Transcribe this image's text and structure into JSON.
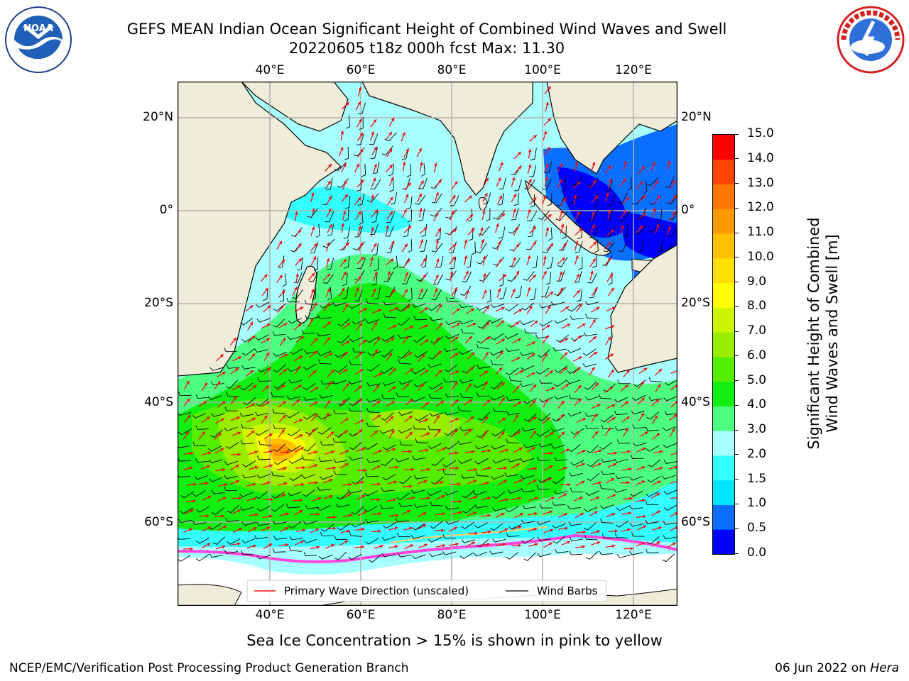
{
  "header": {
    "title_line1": "GEFS MEAN Indian Ocean Significant Height of Combined Wind Waves and Swell",
    "title_line2": "20220605 t18z 000h fcst   Max: 11.30"
  },
  "logos": {
    "left_name": "noaa-logo",
    "left_text": "NOAA",
    "left_ring_text": "NATIONAL OCEANIC AND ATMOSPHERIC ADMINISTRATION · U.S. DEPARTMENT OF COMMERCE",
    "right_name": "nws-logo",
    "right_ring_text": "NATIONAL WEATHER SERVICE"
  },
  "map": {
    "lon_labels": [
      "40°E",
      "60°E",
      "80°E",
      "100°E",
      "120°E"
    ],
    "lat_labels": [
      "20°N",
      "0°",
      "20°S",
      "40°S",
      "60°S"
    ],
    "colors": {
      "land": "#efedda",
      "ice_shelf": "#ffffff",
      "sea_ice": "#ff44dd",
      "wave_arrow": "#ee1111",
      "wind_barb": "#000000"
    },
    "legend": {
      "wave_label": "Primary Wave Direction (unscaled)",
      "barb_label": "Wind Barbs"
    }
  },
  "colorbar": {
    "title_line1": "Significant Height of Combined",
    "title_line2": "Wind Waves and Swell [m]",
    "ticks": [
      "0.0",
      "0.5",
      "1.0",
      "1.5",
      "2.0",
      "3.0",
      "4.0",
      "5.0",
      "6.0",
      "7.0",
      "8.0",
      "9.0",
      "10.0",
      "11.0",
      "12.0",
      "13.0",
      "14.0",
      "15.0"
    ],
    "colors": [
      "#0000ff",
      "#0a6eff",
      "#00e5ff",
      "#33ffff",
      "#a8ffff",
      "#4dff80",
      "#11ee11",
      "#55ee00",
      "#99ee00",
      "#ccf500",
      "#ffff00",
      "#ffe000",
      "#ffc000",
      "#ff9900",
      "#ff7700",
      "#ff4400",
      "#ff0000"
    ]
  },
  "caption": "Sea Ice Concentration > 15% is shown in pink to yellow",
  "footer": {
    "left": "NCEP/EMC/Verification Post Processing Product Generation Branch",
    "right_prefix": "06 Jun 2022 on ",
    "right_machine": "Hera"
  }
}
